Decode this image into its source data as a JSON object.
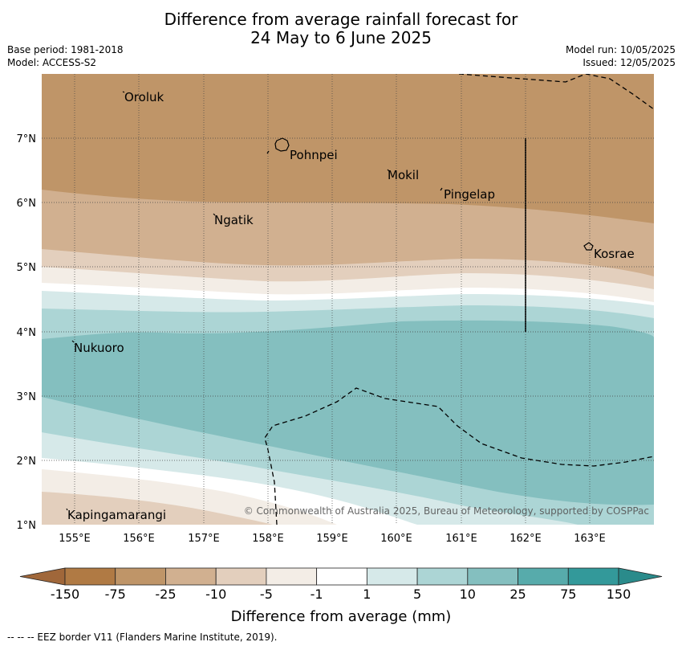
{
  "title_line1": "Difference from average rainfall forecast for",
  "title_line2": "24 May to 6 June 2025",
  "base_period": "Base period: 1981-2018",
  "model": "Model: ACCESS-S2",
  "model_run": "Model run: 10/05/2025",
  "issued": "Issued: 12/05/2025",
  "copyright": "© Commonwealth of Australia 2025, Bureau of Meteorology, supported by COSPPac",
  "x_ticks": [
    "155°E",
    "156°E",
    "157°E",
    "158°E",
    "159°E",
    "160°E",
    "161°E",
    "162°E",
    "163°E"
  ],
  "y_ticks": [
    "7°N",
    "6°N",
    "5°N",
    "4°N",
    "3°N",
    "2°N",
    "1°N"
  ],
  "places": {
    "oroluk": "Oroluk",
    "pohnpei": "Pohnpei",
    "mokil": "Mokil",
    "pingelap": "Pingelap",
    "ngatik": "Ngatik",
    "kosrae": "Kosrae",
    "nukuoro": "Nukuoro",
    "kapingamarangi": "Kapingamarangi"
  },
  "colorbar": {
    "title": "Difference from average (mm)",
    "labels": [
      "-150",
      "-75",
      "-25",
      "-10",
      "-5",
      "-1",
      "1",
      "5",
      "10",
      "25",
      "75",
      "150"
    ],
    "colors": [
      "#b07a44",
      "#bf9568",
      "#d1b090",
      "#e3cfbd",
      "#f3ede6",
      "#ffffff",
      "#d6e9e9",
      "#acd5d5",
      "#84bfbf",
      "#57abab",
      "#33999a"
    ],
    "under_color": "#a0673a",
    "over_color": "#2a8b8b"
  },
  "footnote": "--  --  -- EEZ border V11 (Flanders Marine Institute, 2019)."
}
